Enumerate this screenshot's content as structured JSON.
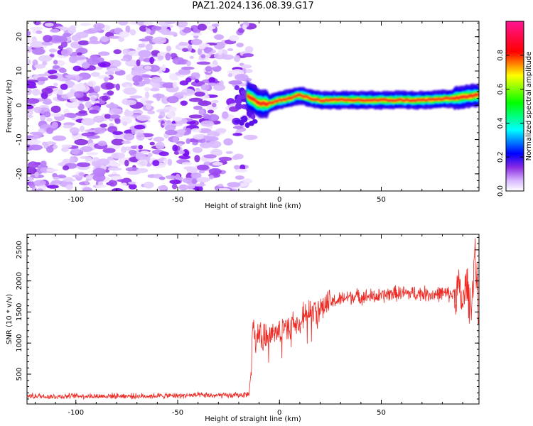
{
  "title": "PAZ1.2024.136.08.39.G17",
  "colors": {
    "snr_line": "#ee2a24",
    "spectrogram_noise": "#8a2be2",
    "spectrogram_ridge": "#ff2020"
  },
  "chart_data": [
    {
      "type": "heatmap",
      "name": "spectrogram",
      "xlabel": "Height of straight line (km)",
      "ylabel": "Frequency (Hz)",
      "xlim": [
        -124,
        98
      ],
      "ylim": [
        -25,
        24.5
      ],
      "xticks": [
        -100,
        -50,
        0,
        50
      ],
      "yticks": [
        -20,
        -10,
        0,
        10,
        20
      ],
      "colorbar": {
        "label": "Normalized spectral amplitude",
        "ticks": [
          0.0,
          0.2,
          0.4,
          0.6,
          0.8
        ],
        "range": [
          0,
          1
        ],
        "colormap": "rainbow"
      },
      "ridge": [
        {
          "x": -15,
          "y": 2.5
        },
        {
          "x": -10,
          "y": 0.5
        },
        {
          "x": -5,
          "y": 0.5
        },
        {
          "x": 0,
          "y": 1.5
        },
        {
          "x": 5,
          "y": 2.0
        },
        {
          "x": 10,
          "y": 3.0
        },
        {
          "x": 15,
          "y": 2.0
        },
        {
          "x": 20,
          "y": 1.5
        },
        {
          "x": 30,
          "y": 1.5
        },
        {
          "x": 50,
          "y": 1.5
        },
        {
          "x": 70,
          "y": 1.5
        },
        {
          "x": 85,
          "y": 2.0
        },
        {
          "x": 98,
          "y": 3.0
        }
      ]
    },
    {
      "type": "line",
      "name": "snr",
      "xlabel": "Height of straight line (km)",
      "ylabel": "SNR (10 * v/v)",
      "xlim": [
        -124,
        98
      ],
      "ylim": [
        20,
        2750
      ],
      "xticks": [
        -100,
        -50,
        0,
        50
      ],
      "yticks": [
        500,
        1000,
        1500,
        2000,
        2500
      ],
      "series": [
        {
          "x": [
            -124,
            -110,
            -100,
            -90,
            -80,
            -70,
            -60,
            -50,
            -40,
            -30,
            -20,
            -15,
            -14,
            -13,
            -12,
            -10,
            -8,
            -6,
            -4,
            -2,
            0,
            2,
            4,
            6,
            8,
            10,
            12,
            15,
            20,
            25,
            30,
            35,
            40,
            45,
            50,
            55,
            60,
            65,
            70,
            75,
            80,
            85,
            88,
            90,
            92,
            94,
            96,
            98
          ],
          "values": [
            150,
            140,
            150,
            145,
            150,
            145,
            150,
            155,
            160,
            155,
            160,
            180,
            500,
            1350,
            1000,
            1200,
            1050,
            1150,
            1100,
            1150,
            1150,
            1250,
            1200,
            1300,
            1250,
            1350,
            1450,
            1500,
            1550,
            1650,
            1700,
            1750,
            1750,
            1750,
            1750,
            1800,
            1800,
            1800,
            1800,
            1780,
            1800,
            1780,
            1900,
            1600,
            2000,
            1500,
            2500,
            1300
          ]
        }
      ]
    }
  ]
}
